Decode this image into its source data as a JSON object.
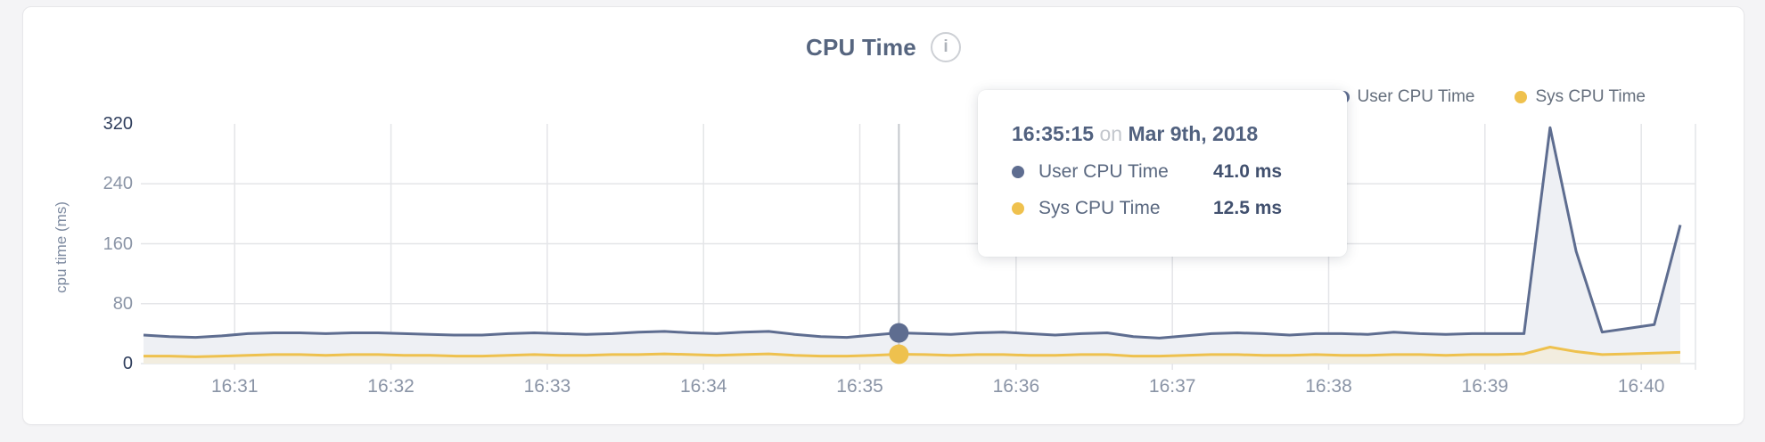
{
  "header": {
    "title": "CPU Time",
    "info_glyph": "i"
  },
  "legend": [
    {
      "label": "User CPU Time",
      "color": "#5e6d90"
    },
    {
      "label": "Sys CPU Time",
      "color": "#efc14e"
    }
  ],
  "axes": {
    "y_label": "cpu time (ms)",
    "y_ticks": [
      "320",
      "240",
      "160",
      "80",
      "0"
    ],
    "x_ticks": [
      "16:31",
      "16:32",
      "16:33",
      "16:34",
      "16:35",
      "16:36",
      "16:37",
      "16:38",
      "16:39",
      "16:40"
    ]
  },
  "tooltip": {
    "time": "16:35:15",
    "conj": "on",
    "date": "Mar 9th, 2018",
    "rows": [
      {
        "label": "User CPU Time",
        "value": "41.0 ms",
        "color": "#5e6d90"
      },
      {
        "label": "Sys CPU Time",
        "value": "12.5 ms",
        "color": "#efc14e"
      }
    ]
  },
  "chart_data": {
    "type": "area",
    "title": "CPU Time",
    "ylabel": "cpu time (ms)",
    "xlabel": "",
    "ylim": [
      0,
      320
    ],
    "y_gridlines": [
      80,
      160,
      240
    ],
    "legend_position": "top-right",
    "x_ticks": [
      "16:31",
      "16:32",
      "16:33",
      "16:34",
      "16:35",
      "16:36",
      "16:37",
      "16:38",
      "16:39",
      "16:40"
    ],
    "x": [
      "16:30:25",
      "16:30:35",
      "16:30:45",
      "16:30:55",
      "16:31:05",
      "16:31:15",
      "16:31:25",
      "16:31:35",
      "16:31:45",
      "16:31:55",
      "16:32:05",
      "16:32:15",
      "16:32:25",
      "16:32:35",
      "16:32:45",
      "16:32:55",
      "16:33:05",
      "16:33:15",
      "16:33:25",
      "16:33:35",
      "16:33:45",
      "16:33:55",
      "16:34:05",
      "16:34:15",
      "16:34:25",
      "16:34:35",
      "16:34:45",
      "16:34:55",
      "16:35:05",
      "16:35:15",
      "16:35:25",
      "16:35:35",
      "16:35:45",
      "16:35:55",
      "16:36:05",
      "16:36:15",
      "16:36:25",
      "16:36:35",
      "16:36:45",
      "16:36:55",
      "16:37:05",
      "16:37:15",
      "16:37:25",
      "16:37:35",
      "16:37:45",
      "16:37:55",
      "16:38:05",
      "16:38:15",
      "16:38:25",
      "16:38:35",
      "16:38:45",
      "16:38:55",
      "16:39:05",
      "16:39:15",
      "16:39:25",
      "16:39:35",
      "16:39:45",
      "16:39:55",
      "16:40:05",
      "16:40:15"
    ],
    "series": [
      {
        "name": "User CPU Time",
        "line_color": "#5e6d90",
        "fill_color": "#eef0f4",
        "values": [
          38,
          36,
          35,
          37,
          40,
          41,
          41,
          40,
          41,
          41,
          40,
          39,
          38,
          38,
          40,
          41,
          40,
          39,
          40,
          42,
          43,
          41,
          40,
          42,
          43,
          39,
          36,
          35,
          38,
          41,
          40,
          39,
          41,
          42,
          40,
          38,
          40,
          41,
          36,
          34,
          37,
          40,
          41,
          40,
          38,
          40,
          40,
          39,
          42,
          40,
          39,
          40,
          40,
          40,
          315,
          150,
          42,
          47,
          52,
          185
        ]
      },
      {
        "name": "Sys CPU Time",
        "line_color": "#eec14e",
        "fill_color": "#f2eddf",
        "values": [
          10,
          10,
          9,
          10,
          11,
          12,
          12,
          11,
          12,
          12,
          11,
          11,
          10,
          10,
          11,
          12,
          11,
          11,
          12,
          12,
          13,
          12,
          11,
          12,
          13,
          11,
          10,
          10,
          11,
          12.5,
          12,
          11,
          12,
          12,
          11,
          11,
          12,
          12,
          10,
          10,
          11,
          12,
          12,
          11,
          11,
          12,
          11,
          11,
          12,
          12,
          11,
          12,
          12,
          13,
          22,
          16,
          12,
          13,
          14,
          15
        ]
      }
    ],
    "hover": {
      "index": 29,
      "time": "16:35:15",
      "values": [
        {
          "series": "User CPU Time",
          "ms": 41.0
        },
        {
          "series": "Sys CPU Time",
          "ms": 12.5
        }
      ],
      "crosshair_color": "#c4c7cc"
    },
    "grid_color": "#e4e5e8"
  }
}
